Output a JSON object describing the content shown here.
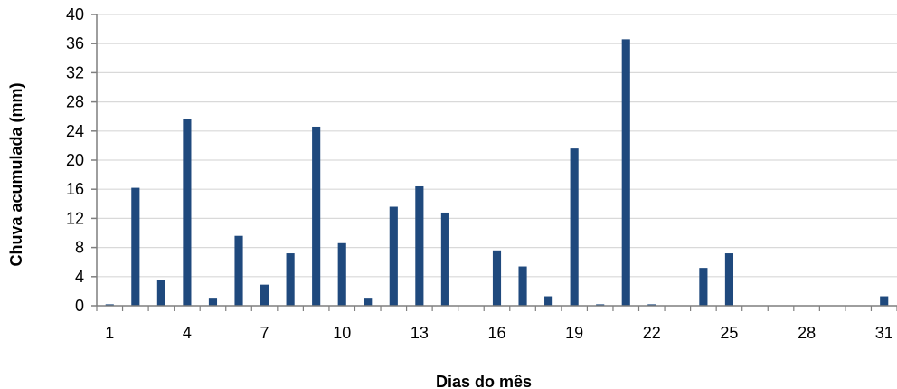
{
  "chart_data": {
    "type": "bar",
    "title": "",
    "xlabel": "Dias do mês",
    "ylabel": "Chuva acumulada (mm)",
    "ylim": [
      0,
      40
    ],
    "yticks": [
      0,
      4,
      8,
      12,
      16,
      20,
      24,
      28,
      32,
      36,
      40
    ],
    "x_tick_labels": [
      1,
      4,
      7,
      10,
      13,
      16,
      19,
      22,
      25,
      28,
      31
    ],
    "grid": true,
    "legend": "none",
    "bar_color": "#1F497D",
    "categories": [
      1,
      2,
      3,
      4,
      5,
      6,
      7,
      8,
      9,
      10,
      11,
      12,
      13,
      14,
      15,
      16,
      17,
      18,
      19,
      20,
      21,
      22,
      23,
      24,
      25,
      26,
      27,
      28,
      29,
      30,
      31
    ],
    "values": [
      0.2,
      16.2,
      3.6,
      25.6,
      1.1,
      9.6,
      2.9,
      7.2,
      24.6,
      8.6,
      1.1,
      13.6,
      16.4,
      12.8,
      0,
      7.6,
      5.4,
      1.3,
      21.6,
      0.2,
      36.6,
      0.2,
      0,
      5.2,
      7.2,
      0,
      0,
      0,
      0,
      0,
      1.3
    ]
  }
}
